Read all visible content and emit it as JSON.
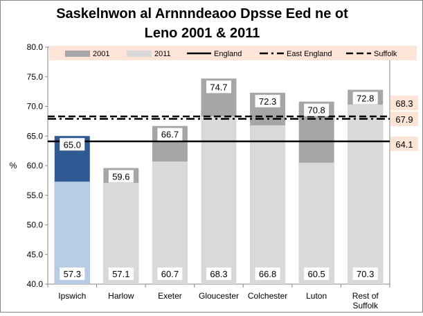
{
  "chart_data": {
    "type": "bar",
    "title_lines": [
      "Saskelnwon al Arnnndeaoo Dpsse Eed ne ot",
      "Leno 2001 & 2011"
    ],
    "ylabel": "%",
    "ylim": [
      40.0,
      80.0
    ],
    "yticks": [
      "40.0",
      "45.0",
      "50.0",
      "55.0",
      "60.0",
      "65.0",
      "70.0",
      "75.0",
      "80.0"
    ],
    "categories": [
      [
        "Ipswich"
      ],
      [
        "Harlow"
      ],
      [
        "Exeter"
      ],
      [
        "Gloucester"
      ],
      [
        "Colchester"
      ],
      [
        "Luton"
      ],
      [
        "Rest of",
        "Suffolk"
      ]
    ],
    "series": [
      {
        "name": "2001",
        "values": [
          65.0,
          59.6,
          66.7,
          74.7,
          72.3,
          70.8,
          72.8
        ],
        "labels": [
          "65.0",
          "59.6",
          "66.7",
          "74.7",
          "72.3",
          "70.8",
          "72.8"
        ]
      },
      {
        "name": "2011",
        "values": [
          57.3,
          57.1,
          60.7,
          68.3,
          66.8,
          60.5,
          70.3
        ],
        "labels": [
          "57.3",
          "57.1",
          "60.7",
          "68.3",
          "66.8",
          "60.5",
          "70.3"
        ]
      }
    ],
    "reference_lines": [
      {
        "name": "England",
        "value": 64.1,
        "label": "64.1",
        "style": "solid"
      },
      {
        "name": "East England",
        "value": 67.9,
        "label": "67.9",
        "style": "dashdot"
      },
      {
        "name": "Suffolk",
        "value": 68.3,
        "label": "68.3",
        "style": "dashed"
      }
    ],
    "legend_position": "top",
    "grid": false,
    "colors": {
      "series_2001": "#a6a6a6",
      "series_2011": "#d9d9d9",
      "highlight_2001": "#2f5a94",
      "highlight_2011": "#b8cce4",
      "legend_bg": "#fce4d6",
      "ref_label_bg": "#fce4d6",
      "line": "#000000"
    },
    "highlight_category_index": 0
  }
}
